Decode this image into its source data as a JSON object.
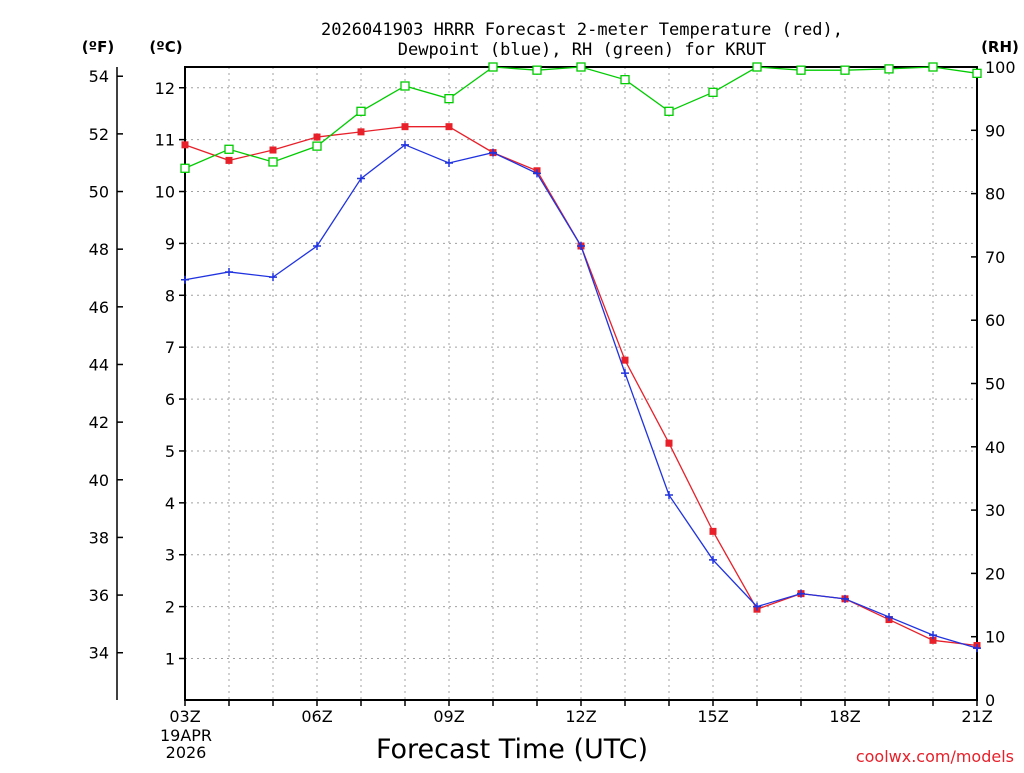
{
  "title_line1": "2026041903 HRRR Forecast 2-meter Temperature (red),",
  "title_line2": "Dewpoint (blue), RH (green) for KRUT",
  "unit_f": "(ºF)",
  "unit_c": "(ºC)",
  "unit_rh": "(RH)",
  "xlabel": "Forecast Time (UTC)",
  "date_line1": "19APR",
  "date_line2": "2026",
  "credit": "coolwx.com/models",
  "colors": {
    "temp": "#e8202a",
    "dew": "#2033e0",
    "rh": "#00cc00",
    "grid": "#a0a0a0"
  },
  "chart_data": {
    "type": "line",
    "x_hours": [
      3,
      4,
      5,
      6,
      7,
      8,
      9,
      10,
      11,
      12,
      13,
      14,
      15,
      16,
      17,
      18,
      19,
      20,
      21
    ],
    "x_ticks": [
      {
        "hour": 3,
        "label": "03Z"
      },
      {
        "hour": 6,
        "label": "06Z"
      },
      {
        "hour": 9,
        "label": "09Z"
      },
      {
        "hour": 12,
        "label": "12Z"
      },
      {
        "hour": 15,
        "label": "15Z"
      },
      {
        "hour": 18,
        "label": "18Z"
      },
      {
        "hour": 21,
        "label": "21Z"
      }
    ],
    "xlim": [
      3,
      21
    ],
    "ylim_c": [
      0.2,
      12.4
    ],
    "ylim_rh": [
      0,
      100
    ],
    "yticks_c": [
      1,
      2,
      3,
      4,
      5,
      6,
      7,
      8,
      9,
      10,
      11,
      12
    ],
    "yticks_f": [
      34,
      36,
      38,
      40,
      42,
      44,
      46,
      48,
      50,
      52,
      54
    ],
    "yticks_rh": [
      0,
      10,
      20,
      30,
      40,
      50,
      60,
      70,
      80,
      90,
      100
    ],
    "series": [
      {
        "name": "Temperature",
        "key": "temp",
        "unit": "C",
        "marker": "filled-square",
        "values": [
          10.9,
          10.6,
          10.8,
          11.05,
          11.15,
          11.25,
          11.25,
          10.75,
          10.4,
          8.95,
          6.75,
          5.15,
          3.45,
          1.95,
          2.25,
          2.15,
          1.75,
          1.35,
          1.25
        ]
      },
      {
        "name": "Dewpoint",
        "key": "dew",
        "unit": "C",
        "marker": "plus",
        "values": [
          8.3,
          8.45,
          8.35,
          8.95,
          10.25,
          10.9,
          10.55,
          10.75,
          10.35,
          8.95,
          6.5,
          4.15,
          2.9,
          2.0,
          2.25,
          2.15,
          1.8,
          1.45,
          1.2
        ]
      },
      {
        "name": "RH",
        "key": "rh",
        "unit": "%",
        "marker": "open-square",
        "values": [
          84,
          87,
          85,
          87.5,
          93,
          97,
          95,
          100,
          99.5,
          100,
          98,
          93,
          96,
          100,
          99.5,
          99.5,
          99.7,
          100,
          99
        ]
      }
    ]
  }
}
